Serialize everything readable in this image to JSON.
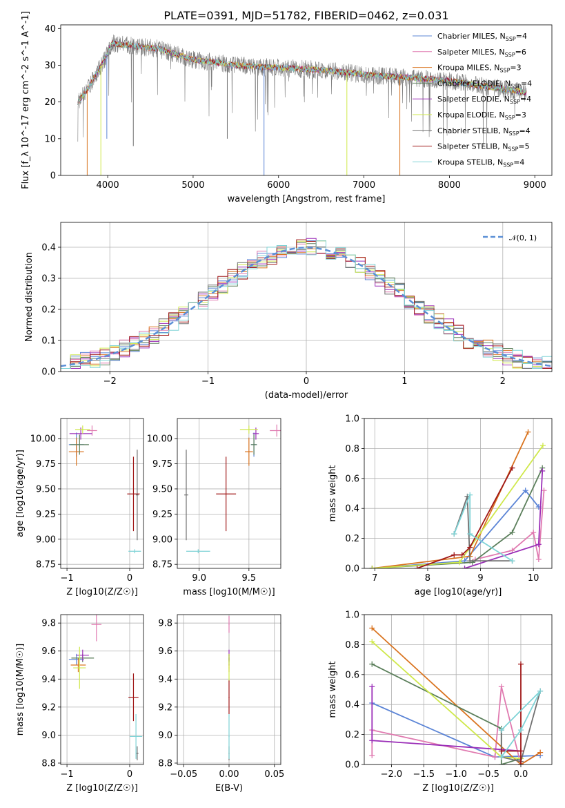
{
  "title": "PLATE=0391, MJD=51782, FIBERID=0462, z=0.031",
  "colors": {
    "Chabrier MILES": "#5b84d6",
    "Salpeter MILES": "#e07ab0",
    "Kroupa MILES": "#d9731e",
    "Chabrier ELODIE": "#5b7f5b",
    "Salpeter ELODIE": "#9b2fb8",
    "Kroupa ELODIE": "#cfe84a",
    "Chabrier STELIB": "#707070",
    "Salpeter STELIB": "#a01818",
    "Kroupa STELIB": "#7fd3d6"
  },
  "chart_data": [
    {
      "id": "spectrum",
      "type": "line",
      "xlabel": "wavelength [Angstrom, rest frame]",
      "ylabel": "Flux [f_λ 10^-17 erg cm^-2 s^-1 A^-1]",
      "xlim": [
        3450,
        9200
      ],
      "ylim": [
        0,
        41
      ],
      "xticks": [
        4000,
        5000,
        6000,
        7000,
        8000,
        9000
      ],
      "yticks": [
        0,
        10,
        20,
        30,
        40
      ],
      "grid": false,
      "legend_position": "top-right",
      "legend": [
        {
          "label": "Chabrier MILES, N",
          "sub": "SSP",
          "val": "=4"
        },
        {
          "label": "Salpeter MILES, N",
          "sub": "SSP",
          "val": "=6"
        },
        {
          "label": "Kroupa MILES, N",
          "sub": "SSP",
          "val": "=3"
        },
        {
          "label": "Chabrier ELODIE, N",
          "sub": "SSP",
          "val": "=4"
        },
        {
          "label": "Salpeter ELODIE, N",
          "sub": "SSP",
          "val": "=4"
        },
        {
          "label": "Kroupa ELODIE, N",
          "sub": "SSP",
          "val": "=3"
        },
        {
          "label": "Chabrier STELIB, N",
          "sub": "SSP",
          "val": "=4"
        },
        {
          "label": "Salpeter STELIB, N",
          "sub": "SSP",
          "val": "=5"
        },
        {
          "label": "Kroupa STELIB, N",
          "sub": "SSP",
          "val": "=4"
        }
      ],
      "continuum": [
        [
          3650,
          20
        ],
        [
          3750,
          23
        ],
        [
          3850,
          27
        ],
        [
          3950,
          31
        ],
        [
          4050,
          36
        ],
        [
          4200,
          35.5
        ],
        [
          4400,
          35
        ],
        [
          4600,
          34.5
        ],
        [
          4800,
          33
        ],
        [
          5000,
          31.5
        ],
        [
          5200,
          31
        ],
        [
          5500,
          30
        ],
        [
          5800,
          29.5
        ],
        [
          6000,
          29.3
        ],
        [
          6300,
          29
        ],
        [
          6600,
          28.5
        ],
        [
          6800,
          28
        ],
        [
          7000,
          27.5
        ],
        [
          7300,
          27
        ],
        [
          7600,
          26.5
        ],
        [
          7900,
          26
        ],
        [
          8200,
          25
        ],
        [
          8500,
          24
        ],
        [
          8800,
          23
        ],
        [
          8900,
          22.5
        ]
      ]
    },
    {
      "id": "residuals",
      "type": "area",
      "xlabel": "(data-model)/error",
      "ylabel": "Normed distribution",
      "xlim": [
        -2.5,
        2.5
      ],
      "ylim": [
        0,
        0.48
      ],
      "xticks": [
        -2,
        -1,
        0,
        1,
        2
      ],
      "yticks": [
        0.0,
        0.1,
        0.2,
        0.3,
        0.4
      ],
      "grid": true,
      "legend_position": "top-right",
      "legend": [
        "𝒩(0, 1)"
      ],
      "bin_width": 0.1
    },
    {
      "id": "age-vs-Z",
      "type": "scatter",
      "xlabel": "Z [log10(Z/Z☉)]",
      "ylabel": "age [log10(age/yr)]",
      "xlim": [
        -1.1,
        0.22
      ],
      "ylim": [
        8.71,
        10.2
      ],
      "xticks": [
        -1,
        0
      ],
      "yticks": [
        8.75,
        9.0,
        9.25,
        9.5,
        9.75,
        10.0
      ],
      "grid": true,
      "points": [
        {
          "model": "Chabrier MILES",
          "x": -0.85,
          "y": 9.94,
          "xe": 0.12,
          "ye": 0.12
        },
        {
          "model": "Salpeter MILES",
          "x": -0.6,
          "y": 10.08,
          "xe": 0.08,
          "ye": 0.05
        },
        {
          "model": "Kroupa MILES",
          "x": -0.85,
          "y": 9.87,
          "xe": 0.12,
          "ye": 0.14
        },
        {
          "model": "Chabrier ELODIE",
          "x": -0.8,
          "y": 9.94,
          "xe": 0.15,
          "ye": 0.1
        },
        {
          "model": "Salpeter ELODIE",
          "x": -0.78,
          "y": 10.05,
          "xe": 0.18,
          "ye": 0.06
        },
        {
          "model": "Kroupa ELODIE",
          "x": -0.75,
          "y": 10.09,
          "xe": 0.12,
          "ye": 0.04
        },
        {
          "model": "Chabrier STELIB",
          "x": 0.12,
          "y": 9.44,
          "xe": 0.02,
          "ye": 0.45
        },
        {
          "model": "Salpeter STELIB",
          "x": 0.06,
          "y": 9.45,
          "xe": 0.1,
          "ye": 0.37
        },
        {
          "model": "Kroupa STELIB",
          "x": 0.08,
          "y": 8.88,
          "xe": 0.1,
          "ye": 0.02
        }
      ]
    },
    {
      "id": "age-vs-mass",
      "type": "scatter",
      "xlabel": "mass [log10(M/M☉)]",
      "ylabel": "",
      "xlim": [
        8.78,
        9.82
      ],
      "ylim": [
        8.71,
        10.2
      ],
      "xticks": [
        9.0,
        9.5
      ],
      "yticks": [
        8.75,
        9.0,
        9.25,
        9.5,
        9.75,
        10.0
      ],
      "grid": true,
      "points": [
        {
          "model": "Chabrier MILES",
          "x": 9.55,
          "y": 9.94,
          "xe": 0.03,
          "ye": 0.12
        },
        {
          "model": "Salpeter MILES",
          "x": 9.78,
          "y": 10.08,
          "xe": 0.07,
          "ye": 0.06
        },
        {
          "model": "Kroupa MILES",
          "x": 9.5,
          "y": 9.87,
          "xe": 0.04,
          "ye": 0.14
        },
        {
          "model": "Chabrier ELODIE",
          "x": 9.55,
          "y": 9.94,
          "xe": 0.03,
          "ye": 0.1
        },
        {
          "model": "Salpeter ELODIE",
          "x": 9.57,
          "y": 10.05,
          "xe": 0.03,
          "ye": 0.06
        },
        {
          "model": "Kroupa ELODIE",
          "x": 9.5,
          "y": 10.09,
          "xe": 0.09,
          "ye": 0.04
        },
        {
          "model": "Chabrier STELIB",
          "x": 8.87,
          "y": 9.44,
          "xe": 0.02,
          "ye": 0.45
        },
        {
          "model": "Salpeter STELIB",
          "x": 9.27,
          "y": 9.45,
          "xe": 0.1,
          "ye": 0.37
        },
        {
          "model": "Kroupa STELIB",
          "x": 8.99,
          "y": 8.88,
          "xe": 0.12,
          "ye": 0.02
        }
      ]
    },
    {
      "id": "weight-vs-age",
      "type": "line",
      "xlabel": "age [log10(age/yr)]",
      "ylabel": "mass weight",
      "xlim": [
        6.8,
        10.35
      ],
      "ylim": [
        0,
        1.0
      ],
      "xticks": [
        7,
        8,
        9,
        10
      ],
      "yticks": [
        0.0,
        0.2,
        0.4,
        0.6,
        0.8,
        1.0
      ],
      "grid": true,
      "series": [
        {
          "model": "Chabrier MILES",
          "x": [
            6.95,
            8.7,
            9.85,
            10.1
          ],
          "y": [
            0.0,
            0.05,
            0.52,
            0.41
          ]
        },
        {
          "model": "Salpeter MILES",
          "x": [
            8.9,
            9.6,
            10.0,
            10.1,
            10.2
          ],
          "y": [
            0.06,
            0.12,
            0.24,
            0.06,
            0.52
          ]
        },
        {
          "model": "Kroupa MILES",
          "x": [
            6.95,
            8.8,
            9.9
          ],
          "y": [
            0.0,
            0.08,
            0.91
          ]
        },
        {
          "model": "Chabrier ELODIE",
          "x": [
            6.95,
            8.85,
            9.6,
            10.17
          ],
          "y": [
            0.0,
            0.04,
            0.24,
            0.67
          ]
        },
        {
          "model": "Salpeter ELODIE",
          "x": [
            8.7,
            10.1,
            10.17
          ],
          "y": [
            0.0,
            0.16,
            0.65
          ]
        },
        {
          "model": "Kroupa ELODIE",
          "x": [
            6.95,
            8.6,
            10.18
          ],
          "y": [
            0.0,
            0.04,
            0.82
          ]
        },
        {
          "model": "Chabrier STELIB",
          "x": [
            8.5,
            8.75,
            8.8,
            9.6
          ],
          "y": [
            0.23,
            0.48,
            0.05,
            0.05
          ]
        },
        {
          "model": "Salpeter STELIB",
          "x": [
            7.8,
            8.5,
            8.65,
            8.8,
            9.6
          ],
          "y": [
            0.0,
            0.09,
            0.09,
            0.14,
            0.67
          ]
        },
        {
          "model": "Kroupa STELIB",
          "x": [
            8.5,
            8.8,
            8.8,
            9.6
          ],
          "y": [
            0.23,
            0.49,
            0.23,
            0.05
          ]
        }
      ]
    },
    {
      "id": "mass-vs-Z",
      "type": "scatter",
      "xlabel": "Z [log10(Z/Z☉)]",
      "ylabel": "mass [log10(M/M☉)]",
      "xlim": [
        -1.1,
        0.22
      ],
      "ylim": [
        8.79,
        9.86
      ],
      "xticks": [
        -1,
        0
      ],
      "yticks": [
        8.8,
        9.0,
        9.2,
        9.4,
        9.6,
        9.8
      ],
      "grid": true,
      "points": [
        {
          "model": "Chabrier MILES",
          "x": -0.85,
          "y": 9.54,
          "xe": 0.12,
          "ye": 0.04
        },
        {
          "model": "Salpeter MILES",
          "x": -0.53,
          "y": 9.79,
          "xe": 0.08,
          "ye": 0.12
        },
        {
          "model": "Kroupa MILES",
          "x": -0.82,
          "y": 9.5,
          "xe": 0.12,
          "ye": 0.05
        },
        {
          "model": "Chabrier ELODIE",
          "x": -0.75,
          "y": 9.55,
          "xe": 0.18,
          "ye": 0.03
        },
        {
          "model": "Salpeter ELODIE",
          "x": -0.75,
          "y": 9.57,
          "xe": 0.1,
          "ye": 0.04
        },
        {
          "model": "Kroupa ELODIE",
          "x": -0.8,
          "y": 9.48,
          "xe": 0.1,
          "ye": 0.15
        },
        {
          "model": "Chabrier STELIB",
          "x": 0.12,
          "y": 8.87,
          "xe": 0.02,
          "ye": 0.05
        },
        {
          "model": "Salpeter STELIB",
          "x": 0.06,
          "y": 9.27,
          "xe": 0.08,
          "ye": 0.17
        },
        {
          "model": "Kroupa STELIB",
          "x": 0.1,
          "y": 8.99,
          "xe": 0.1,
          "ye": 0.16
        }
      ]
    },
    {
      "id": "mass-vs-ebv",
      "type": "scatter",
      "xlabel": "E(B-V)",
      "ylabel": "",
      "xlim": [
        -0.057,
        0.057
      ],
      "ylim": [
        8.79,
        9.86
      ],
      "xticks": [
        -0.05,
        0.0,
        0.05
      ],
      "yticks": [
        8.8,
        9.0,
        9.2,
        9.4,
        9.6,
        9.8
      ],
      "grid": true,
      "points": [
        {
          "model": "Chabrier MILES",
          "x": 0,
          "y": 9.54,
          "xe": 0.0005,
          "ye": 0.04
        },
        {
          "model": "Salpeter MILES",
          "x": 0,
          "y": 9.79,
          "xe": 0.0005,
          "ye": 0.06
        },
        {
          "model": "Kroupa MILES",
          "x": 0,
          "y": 9.5,
          "xe": 0.0005,
          "ye": 0.05
        },
        {
          "model": "Chabrier ELODIE",
          "x": 0,
          "y": 9.55,
          "xe": 0.0005,
          "ye": 0.03
        },
        {
          "model": "Salpeter ELODIE",
          "x": 0,
          "y": 9.57,
          "xe": 0.0005,
          "ye": 0.04
        },
        {
          "model": "Kroupa ELODIE",
          "x": 0,
          "y": 9.48,
          "xe": 0.0005,
          "ye": 0.1
        },
        {
          "model": "Chabrier STELIB",
          "x": 0,
          "y": 8.87,
          "xe": 0.0005,
          "ye": 0.05
        },
        {
          "model": "Salpeter STELIB",
          "x": 0,
          "y": 9.27,
          "xe": 0.0005,
          "ye": 0.12
        },
        {
          "model": "Kroupa STELIB",
          "x": 0,
          "y": 8.99,
          "xe": 0.0005,
          "ye": 0.16
        }
      ]
    },
    {
      "id": "weight-vs-Z",
      "type": "line",
      "xlabel": "Z [log10(Z/Z☉)]",
      "ylabel": "mass weight",
      "xlim": [
        -2.42,
        0.48
      ],
      "ylim": [
        0,
        1.0
      ],
      "xticks": [
        -2.0,
        -1.5,
        -1.0,
        -0.5,
        0.0
      ],
      "yticks": [
        0.0,
        0.2,
        0.4,
        0.6,
        0.8,
        1.0
      ],
      "grid": true,
      "series": [
        {
          "model": "Chabrier MILES",
          "x": [
            -2.3,
            -0.4,
            0.3
          ],
          "y": [
            0.41,
            0.05,
            0.06
          ]
        },
        {
          "model": "Salpeter MILES",
          "x": [
            -2.3,
            -2.3,
            -0.4,
            -0.3,
            0.0,
            0.3
          ],
          "y": [
            0.06,
            0.23,
            0.05,
            0.52,
            0.0,
            0.08
          ]
        },
        {
          "model": "Kroupa MILES",
          "x": [
            -2.3,
            0.0,
            0.3
          ],
          "y": [
            0.91,
            0.0,
            0.08
          ]
        },
        {
          "model": "Chabrier ELODIE",
          "x": [
            -2.3,
            -0.3,
            -0.3,
            0.0
          ],
          "y": [
            0.67,
            0.24,
            0.0,
            0.04
          ]
        },
        {
          "model": "Salpeter ELODIE",
          "x": [
            -2.3,
            -2.3,
            -0.3,
            0.0
          ],
          "y": [
            0.52,
            0.16,
            0.1,
            0.09
          ]
        },
        {
          "model": "Kroupa ELODIE",
          "x": [
            -2.3,
            -0.3,
            0.0
          ],
          "y": [
            0.82,
            0.05,
            0.04
          ]
        },
        {
          "model": "Chabrier STELIB",
          "x": [
            -0.3,
            -0.3,
            0.0,
            0.3
          ],
          "y": [
            0.23,
            0.05,
            0.02,
            0.49
          ]
        },
        {
          "model": "Salpeter STELIB",
          "x": [
            -0.3,
            0.0,
            0.0,
            0.0
          ],
          "y": [
            0.09,
            0.09,
            0.67,
            0.0
          ]
        },
        {
          "model": "Kroupa STELIB",
          "x": [
            -0.3,
            0.0,
            0.3,
            -0.3
          ],
          "y": [
            0.05,
            0.23,
            0.49,
            0.23
          ]
        }
      ]
    }
  ]
}
